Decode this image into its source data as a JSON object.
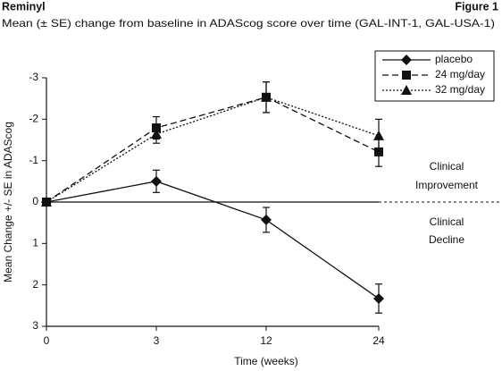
{
  "header": {
    "left": "Reminyl",
    "right": "Figure 1"
  },
  "chart_data": {
    "type": "line",
    "subtitle": "Mean (± SE) change from baseline in ADAScog score over time (GAL-INT-1, GAL-USA-1)",
    "x_label": "Time (weeks)",
    "y_label": "Mean Change +/- SE in ADAScog",
    "categories": [
      "0",
      "3",
      "12",
      "24"
    ],
    "ylim": [
      -3,
      3
    ],
    "y_inverted": true,
    "yticks": [
      -3,
      -2,
      -1,
      0,
      1,
      2,
      3
    ],
    "color": "#111111",
    "series": [
      {
        "name": "placebo",
        "marker": "diamond",
        "line_style": "solid",
        "values": [
          0,
          -0.5,
          0.43,
          2.33
        ],
        "errors": [
          null,
          0.27,
          0.3,
          0.35
        ]
      },
      {
        "name": "24 mg/day",
        "marker": "square",
        "line_style": "dashed",
        "values": [
          0,
          -1.79,
          -2.53,
          -1.21
        ],
        "errors": [
          null,
          0.27,
          0.37,
          0.35
        ]
      },
      {
        "name": "32 mg/day",
        "marker": "triangle",
        "line_style": "dotted",
        "values": [
          0,
          -1.64,
          -2.53,
          -1.6
        ],
        "errors": [
          null,
          0.22,
          0.37,
          0.4
        ]
      }
    ],
    "annotations": [
      "Clinical",
      "Improvement",
      "Clinical",
      "Decline"
    ]
  }
}
